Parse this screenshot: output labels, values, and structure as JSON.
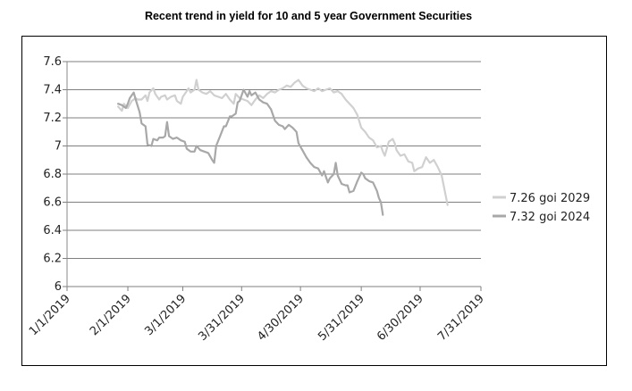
{
  "chart_data": {
    "type": "line",
    "title": "Recent trend in yield for 10 and 5 year Government Securities",
    "xlabel": "",
    "ylabel": "",
    "ylim": [
      6,
      7.6
    ],
    "yticks": [
      "7.6",
      "7.4",
      "7.2",
      "7",
      "6.8",
      "6.6",
      "6.4",
      "6.2",
      "6"
    ],
    "ytick_values": [
      7.6,
      7.4,
      7.2,
      7.0,
      6.8,
      6.6,
      6.4,
      6.2,
      6.0
    ],
    "x_range_days": [
      0,
      211
    ],
    "xticks": [
      "1/1/2019",
      "2/1/2019",
      "3/1/2019",
      "3/31/2019",
      "4/30/2019",
      "5/31/2019",
      "6/30/2019",
      "7/31/2019"
    ],
    "xtick_days": [
      0,
      31,
      59,
      89,
      119,
      150,
      180,
      211
    ],
    "legend_position": "right",
    "series": [
      {
        "name": "7.26 goi 2029",
        "color": "#d0d0d0",
        "points": [
          [
            26,
            7.28
          ],
          [
            28,
            7.25
          ],
          [
            29,
            7.3
          ],
          [
            31,
            7.27
          ],
          [
            33,
            7.32
          ],
          [
            35,
            7.34
          ],
          [
            36,
            7.33
          ],
          [
            38,
            7.33
          ],
          [
            40,
            7.36
          ],
          [
            41,
            7.32
          ],
          [
            42,
            7.38
          ],
          [
            44,
            7.41
          ],
          [
            45,
            7.37
          ],
          [
            47,
            7.33
          ],
          [
            48,
            7.35
          ],
          [
            50,
            7.36
          ],
          [
            51,
            7.33
          ],
          [
            53,
            7.35
          ],
          [
            55,
            7.36
          ],
          [
            56,
            7.32
          ],
          [
            58,
            7.3
          ],
          [
            59,
            7.35
          ],
          [
            60,
            7.37
          ],
          [
            62,
            7.41
          ],
          [
            63,
            7.38
          ],
          [
            65,
            7.4
          ],
          [
            66,
            7.47
          ],
          [
            67,
            7.4
          ],
          [
            69,
            7.38
          ],
          [
            71,
            7.37
          ],
          [
            73,
            7.39
          ],
          [
            75,
            7.36
          ],
          [
            77,
            7.35
          ],
          [
            79,
            7.34
          ],
          [
            81,
            7.37
          ],
          [
            83,
            7.33
          ],
          [
            85,
            7.3
          ],
          [
            86,
            7.37
          ],
          [
            88,
            7.34
          ],
          [
            90,
            7.33
          ],
          [
            92,
            7.32
          ],
          [
            94,
            7.29
          ],
          [
            96,
            7.33
          ],
          [
            98,
            7.36
          ],
          [
            100,
            7.34
          ],
          [
            102,
            7.37
          ],
          [
            104,
            7.39
          ],
          [
            106,
            7.38
          ],
          [
            108,
            7.4
          ],
          [
            110,
            7.41
          ],
          [
            112,
            7.43
          ],
          [
            114,
            7.42
          ],
          [
            116,
            7.45
          ],
          [
            118,
            7.47
          ],
          [
            120,
            7.43
          ],
          [
            122,
            7.41
          ],
          [
            124,
            7.4
          ],
          [
            126,
            7.39
          ],
          [
            128,
            7.41
          ],
          [
            130,
            7.39
          ],
          [
            132,
            7.4
          ],
          [
            134,
            7.41
          ],
          [
            136,
            7.38
          ],
          [
            138,
            7.39
          ],
          [
            140,
            7.37
          ],
          [
            142,
            7.33
          ],
          [
            144,
            7.3
          ],
          [
            146,
            7.27
          ],
          [
            148,
            7.22
          ],
          [
            150,
            7.13
          ],
          [
            152,
            7.1
          ],
          [
            154,
            7.06
          ],
          [
            156,
            7.04
          ],
          [
            158,
            6.99
          ],
          [
            160,
            7.0
          ],
          [
            161,
            6.96
          ],
          [
            162,
            6.93
          ],
          [
            164,
            7.03
          ],
          [
            166,
            7.05
          ],
          [
            167,
            7.02
          ],
          [
            168,
            6.97
          ],
          [
            170,
            6.93
          ],
          [
            172,
            6.94
          ],
          [
            174,
            6.89
          ],
          [
            176,
            6.88
          ],
          [
            177,
            6.82
          ],
          [
            179,
            6.84
          ],
          [
            181,
            6.85
          ],
          [
            183,
            6.92
          ],
          [
            185,
            6.88
          ],
          [
            187,
            6.9
          ],
          [
            189,
            6.85
          ],
          [
            191,
            6.79
          ],
          [
            193,
            6.65
          ],
          [
            194,
            6.58
          ]
        ]
      },
      {
        "name": "7.32 goi 2024",
        "color": "#a8a8a8",
        "points": [
          [
            26,
            7.3
          ],
          [
            28,
            7.29
          ],
          [
            30,
            7.27
          ],
          [
            31,
            7.3
          ],
          [
            32,
            7.34
          ],
          [
            34,
            7.38
          ],
          [
            35,
            7.33
          ],
          [
            37,
            7.24
          ],
          [
            38,
            7.16
          ],
          [
            40,
            7.14
          ],
          [
            41,
            7.01
          ],
          [
            43,
            7.0
          ],
          [
            44,
            7.05
          ],
          [
            46,
            7.04
          ],
          [
            47,
            7.06
          ],
          [
            49,
            7.06
          ],
          [
            50,
            7.07
          ],
          [
            51,
            7.17
          ],
          [
            52,
            7.07
          ],
          [
            54,
            7.05
          ],
          [
            56,
            7.06
          ],
          [
            58,
            7.04
          ],
          [
            60,
            7.03
          ],
          [
            61,
            6.98
          ],
          [
            63,
            6.96
          ],
          [
            65,
            6.96
          ],
          [
            66,
            7.0
          ],
          [
            68,
            6.97
          ],
          [
            70,
            6.96
          ],
          [
            72,
            6.95
          ],
          [
            74,
            6.9
          ],
          [
            75,
            6.88
          ],
          [
            76,
            7.0
          ],
          [
            78,
            7.07
          ],
          [
            80,
            7.14
          ],
          [
            81,
            7.14
          ],
          [
            83,
            7.21
          ],
          [
            84,
            7.21
          ],
          [
            86,
            7.23
          ],
          [
            87,
            7.31
          ],
          [
            88,
            7.32
          ],
          [
            90,
            7.4
          ],
          [
            92,
            7.35
          ],
          [
            93,
            7.39
          ],
          [
            94,
            7.36
          ],
          [
            96,
            7.38
          ],
          [
            98,
            7.33
          ],
          [
            100,
            7.31
          ],
          [
            102,
            7.3
          ],
          [
            103,
            7.28
          ],
          [
            104,
            7.26
          ],
          [
            106,
            7.18
          ],
          [
            108,
            7.15
          ],
          [
            110,
            7.14
          ],
          [
            111,
            7.12
          ],
          [
            113,
            7.15
          ],
          [
            115,
            7.13
          ],
          [
            117,
            7.1
          ],
          [
            118,
            7.02
          ],
          [
            120,
            6.97
          ],
          [
            122,
            6.92
          ],
          [
            124,
            6.88
          ],
          [
            126,
            6.85
          ],
          [
            128,
            6.84
          ],
          [
            130,
            6.79
          ],
          [
            131,
            6.82
          ],
          [
            132,
            6.78
          ],
          [
            133,
            6.74
          ],
          [
            134,
            6.77
          ],
          [
            136,
            6.8
          ],
          [
            137,
            6.88
          ],
          [
            138,
            6.79
          ],
          [
            140,
            6.73
          ],
          [
            142,
            6.72
          ],
          [
            143,
            6.72
          ],
          [
            144,
            6.67
          ],
          [
            146,
            6.68
          ],
          [
            148,
            6.75
          ],
          [
            150,
            6.81
          ],
          [
            151,
            6.8
          ],
          [
            152,
            6.77
          ],
          [
            154,
            6.75
          ],
          [
            156,
            6.74
          ],
          [
            158,
            6.68
          ],
          [
            159,
            6.63
          ],
          [
            160,
            6.6
          ],
          [
            161,
            6.51
          ]
        ]
      }
    ]
  }
}
